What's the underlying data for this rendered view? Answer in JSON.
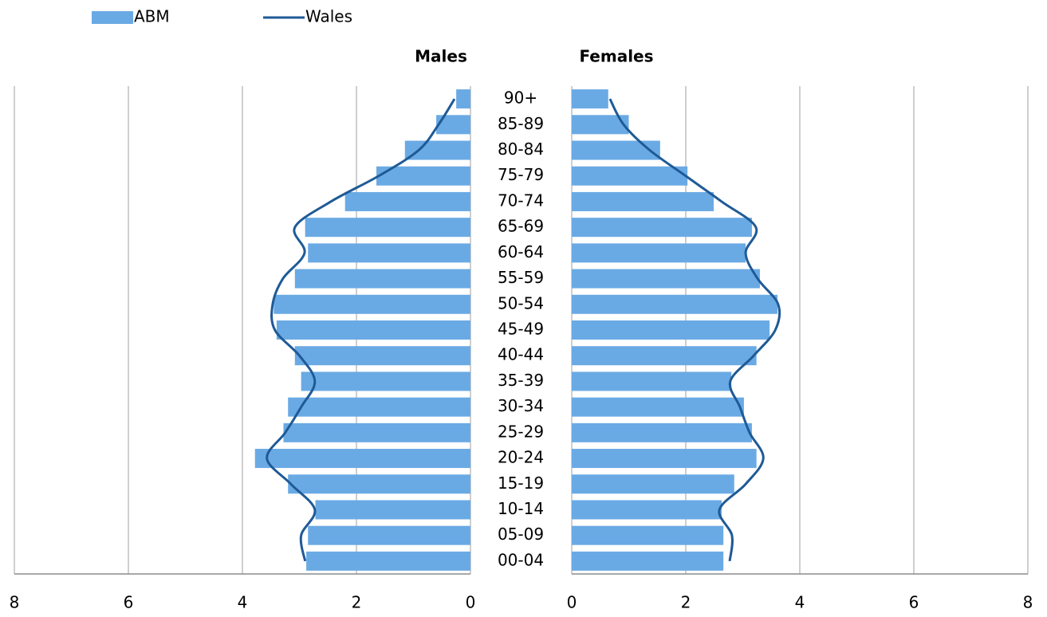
{
  "chart_data": {
    "type": "pyramid",
    "legend": "top-left",
    "grid": true,
    "categories": [
      "00-04",
      "05-09",
      "10-14",
      "15-19",
      "20-24",
      "25-29",
      "30-34",
      "35-39",
      "40-44",
      "45-49",
      "50-54",
      "55-59",
      "60-64",
      "65-69",
      "70-74",
      "75-79",
      "80-84",
      "85-89",
      "90+"
    ],
    "panels": [
      {
        "title": "Males",
        "xlim": [
          8,
          0
        ],
        "xticks": [
          8,
          6,
          4,
          2,
          0
        ]
      },
      {
        "title": "Females",
        "xlim": [
          0,
          8
        ],
        "xticks": [
          0,
          2,
          4,
          6,
          8
        ]
      }
    ],
    "series": [
      {
        "name": "ABM",
        "color": "#6aaae4",
        "style": "bar",
        "values": [
          [
            2.88,
            2.85,
            2.72,
            3.2,
            3.78,
            3.28,
            3.2,
            2.97,
            3.08,
            3.4,
            3.45,
            3.08,
            2.85,
            2.9,
            2.2,
            1.65,
            1.15,
            0.6,
            0.25
          ],
          [
            2.66,
            2.66,
            2.63,
            2.85,
            3.24,
            3.16,
            3.02,
            2.8,
            3.24,
            3.47,
            3.61,
            3.3,
            3.05,
            3.16,
            2.49,
            2.03,
            1.55,
            1.0,
            0.64
          ]
        ]
      },
      {
        "name": "Wales",
        "color": "#1f5a96",
        "style": "line",
        "values": [
          [
            2.9,
            2.97,
            2.73,
            3.15,
            3.57,
            3.25,
            2.97,
            2.73,
            3.0,
            3.43,
            3.47,
            3.29,
            2.91,
            3.08,
            2.45,
            1.61,
            0.91,
            0.56,
            0.28
          ],
          [
            2.77,
            2.81,
            2.59,
            3.05,
            3.36,
            3.12,
            2.95,
            2.78,
            3.19,
            3.57,
            3.62,
            3.26,
            3.05,
            3.23,
            2.63,
            2.0,
            1.37,
            0.91,
            0.67
          ]
        ]
      }
    ]
  }
}
